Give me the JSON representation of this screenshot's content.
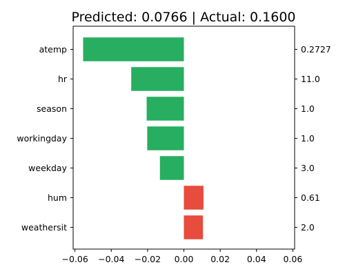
{
  "chart_data": {
    "type": "bar",
    "orientation": "horizontal",
    "title": "Predicted: 0.0766 | Actual: 0.1600",
    "xlabel": "",
    "ylabel": "",
    "xlim": [
      -0.061,
      0.061
    ],
    "xticks": [
      -0.06,
      -0.04,
      -0.02,
      0.0,
      0.02,
      0.04,
      0.06
    ],
    "xtick_labels": [
      "−0.06",
      "−0.04",
      "−0.02",
      "0.00",
      "0.02",
      "0.04",
      "0.06"
    ],
    "grid": false,
    "bars": [
      {
        "feature": "atemp",
        "value": -0.0555,
        "feature_value": "0.2727",
        "color": "#27ae60"
      },
      {
        "feature": "hr",
        "value": -0.029,
        "feature_value": "11.0",
        "color": "#27ae60"
      },
      {
        "feature": "season",
        "value": -0.0205,
        "feature_value": "1.0",
        "color": "#27ae60"
      },
      {
        "feature": "workingday",
        "value": -0.0202,
        "feature_value": "1.0",
        "color": "#27ae60"
      },
      {
        "feature": "weekday",
        "value": -0.0132,
        "feature_value": "3.0",
        "color": "#27ae60"
      },
      {
        "feature": "hum",
        "value": 0.0108,
        "feature_value": "0.61",
        "color": "#e74c3c"
      },
      {
        "feature": "weathersit",
        "value": 0.0105,
        "feature_value": "2.0",
        "color": "#e74c3c"
      }
    ]
  }
}
